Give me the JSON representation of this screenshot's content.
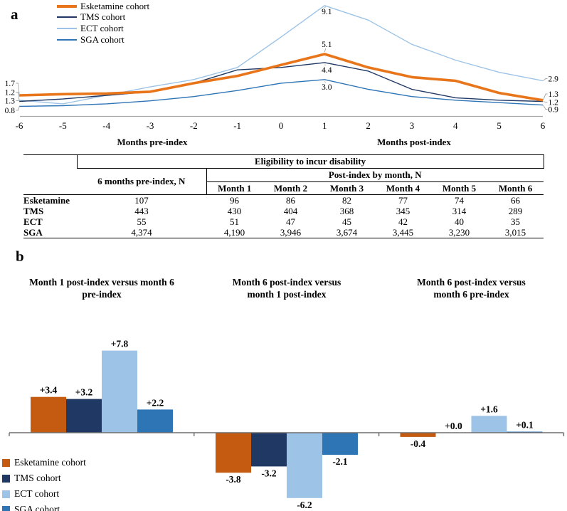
{
  "panels": {
    "a_label": "a",
    "b_label": "b"
  },
  "colors": {
    "series": [
      {
        "name": "Esketamine cohort",
        "line": "#E8751A",
        "fill": "#C55A11"
      },
      {
        "name": "TMS cohort",
        "line": "#1F3864",
        "fill": "#1F3864"
      },
      {
        "name": "ECT cohort",
        "line": "#9DC3E6",
        "fill": "#9DC3E6"
      },
      {
        "name": "SGA cohort",
        "line": "#2E75B6",
        "fill": "#2E75B6"
      }
    ],
    "line_axis": "#A6A6A6",
    "bar_axis": "#6E6E6E",
    "leader": "#A6A6A6",
    "text": "#000000"
  },
  "chart_data": [
    {
      "type": "line",
      "x": [
        -6,
        -5,
        -4,
        -3,
        -2,
        -1,
        0,
        1,
        2,
        3,
        4,
        5,
        6
      ],
      "xlabel_left": "Months pre-index",
      "xlabel_right": "Months post-index",
      "ylim": [
        0,
        9.5
      ],
      "grid": false,
      "legend_position": "top-left",
      "series": [
        {
          "name": "Esketamine cohort",
          "values": [
            1.7,
            1.8,
            1.85,
            2.0,
            2.7,
            3.3,
            4.2,
            5.1,
            4.0,
            3.2,
            2.9,
            1.9,
            1.3
          ],
          "start_label": "1.7",
          "peak_label": "5.1",
          "end_label": "1.3"
        },
        {
          "name": "TMS cohort",
          "values": [
            1.2,
            1.4,
            1.7,
            2.0,
            2.7,
            3.8,
            4.0,
            4.4,
            3.7,
            2.2,
            1.5,
            1.3,
            1.2
          ],
          "start_label": "1.2",
          "peak_label": "4.4",
          "end_label": "1.2"
        },
        {
          "name": "ECT cohort",
          "values": [
            1.3,
            1.0,
            1.7,
            2.4,
            3.0,
            4.0,
            6.5,
            9.1,
            7.9,
            5.9,
            4.6,
            3.6,
            2.9
          ],
          "start_label": "1.3",
          "peak_label": "9.1",
          "end_label": "2.9"
        },
        {
          "name": "SGA cohort",
          "values": [
            0.8,
            0.85,
            1.0,
            1.25,
            1.6,
            2.1,
            2.7,
            3.0,
            2.2,
            1.6,
            1.3,
            1.1,
            0.9
          ],
          "start_label": "0.8",
          "peak_label": "3.0",
          "end_label": "0.9"
        }
      ]
    },
    {
      "type": "bar",
      "series_names": [
        "Esketamine cohort",
        "TMS cohort",
        "ECT cohort",
        "SGA cohort"
      ],
      "legend_position": "bottom-left",
      "groups": [
        {
          "title_lines": [
            "Month 1 post-index versus month 6",
            "pre-index"
          ],
          "values": [
            3.4,
            3.2,
            7.8,
            2.2
          ],
          "labels": [
            "+3.4",
            "+3.2",
            "+7.8",
            "+2.2"
          ]
        },
        {
          "title_lines": [
            "Month 6 post-index versus",
            "month 1 post-index"
          ],
          "values": [
            -3.8,
            -3.2,
            -6.2,
            -2.1
          ],
          "labels": [
            "-3.8",
            "-3.2",
            "-6.2",
            "-2.1"
          ]
        },
        {
          "title_lines": [
            "Month 6 post-index versus",
            "month 6 pre-index"
          ],
          "values": [
            -0.4,
            0.0,
            1.6,
            0.1
          ],
          "labels": [
            "-0.4",
            "+0.0",
            "+1.6",
            "+0.1"
          ]
        }
      ]
    }
  ],
  "table": {
    "span_header": "Eligibility to incur disability",
    "pre_header": "6 months pre-index, N",
    "post_header": "Post-index by month, N",
    "month_columns": [
      "Month 1",
      "Month 2",
      "Month 3",
      "Month 4",
      "Month 5",
      "Month 6"
    ],
    "rows": [
      {
        "label": "Esketamine",
        "pre": "107",
        "post": [
          "96",
          "86",
          "82",
          "77",
          "74",
          "66"
        ]
      },
      {
        "label": "TMS",
        "pre": "443",
        "post": [
          "430",
          "404",
          "368",
          "345",
          "314",
          "289"
        ]
      },
      {
        "label": "ECT",
        "pre": "55",
        "post": [
          "51",
          "47",
          "45",
          "42",
          "40",
          "35"
        ]
      },
      {
        "label": "SGA",
        "pre": "4,374",
        "post": [
          "4,190",
          "3,946",
          "3,674",
          "3,445",
          "3,230",
          "3,015"
        ]
      }
    ]
  }
}
